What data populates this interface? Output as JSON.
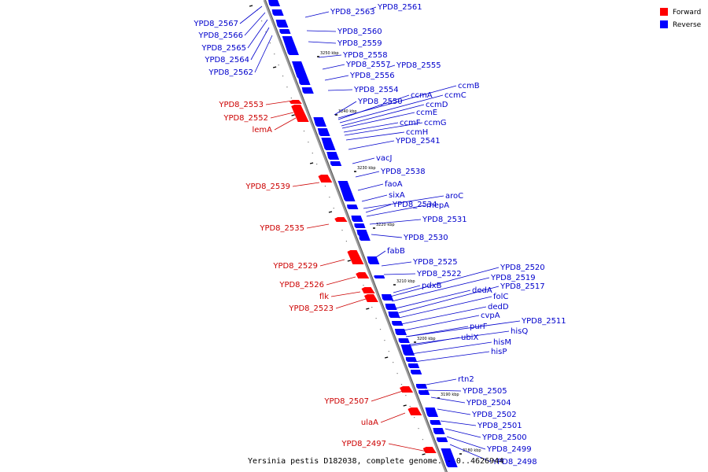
{
  "caption": "Yersinia pestis D182038, complete genome. - 0..4626944",
  "legend": [
    {
      "label": "Forward",
      "color": "#ff0000"
    },
    {
      "label": "Reverse",
      "color": "#0000ff"
    }
  ],
  "colors": {
    "forward": "#ff0000",
    "reverse": "#0000ff",
    "forward_text": "#cc0000",
    "reverse_text": "#0000cc",
    "backbone": "#888888"
  },
  "kbp_ticks": [
    "3250 kbp",
    "3240 kbp",
    "3230 kbp",
    "3220 kbp",
    "3210 kbp",
    "3200 kbp",
    "3190 kbp",
    "3180 kbp"
  ],
  "forward_genes": [
    "YPD8_2553",
    "YPD8_2552",
    "lemA",
    "YPD8_2539",
    "YPD8_2535",
    "YPD8_2529",
    "YPD8_2526",
    "flk",
    "YPD8_2523",
    "YPD8_2507",
    "ulaA",
    "YPD8_2497"
  ],
  "reverse_genes": [
    "YPD8_2567",
    "YPD8_2566",
    "YPD8_2565",
    "YPD8_2564",
    "YPD8_2562",
    "YPD8_2563",
    "YPD8_2561",
    "YPD8_2560",
    "YPD8_2559",
    "YPD8_2558",
    "YPD8_2557",
    "YPD8_2555",
    "YPD8_2556",
    "YPD8_2554",
    "ccmB",
    "ccmA",
    "ccmC",
    "YPD8_2550",
    "ccmD",
    "ccmE",
    "ccmF",
    "ccmG",
    "ccmH",
    "YPD8_2541",
    "vacJ",
    "YPD8_2538",
    "faoA",
    "sixA",
    "aroC",
    "YPD8_2534",
    "mepA",
    "YPD8_2531",
    "YPD8_2530",
    "fabB",
    "YPD8_2525",
    "YPD8_2520",
    "YPD8_2522",
    "YPD8_2519",
    "pdxB",
    "dedA",
    "YPD8_2517",
    "folC",
    "dedD",
    "cvpA",
    "YPD8_2511",
    "purF",
    "hisQ",
    "ubiX",
    "hisM",
    "hisP",
    "rtn2",
    "YPD8_2505",
    "YPD8_2504",
    "YPD8_2502",
    "YPD8_2501",
    "YPD8_2500",
    "YPD8_2499",
    "YPD8_2498"
  ]
}
